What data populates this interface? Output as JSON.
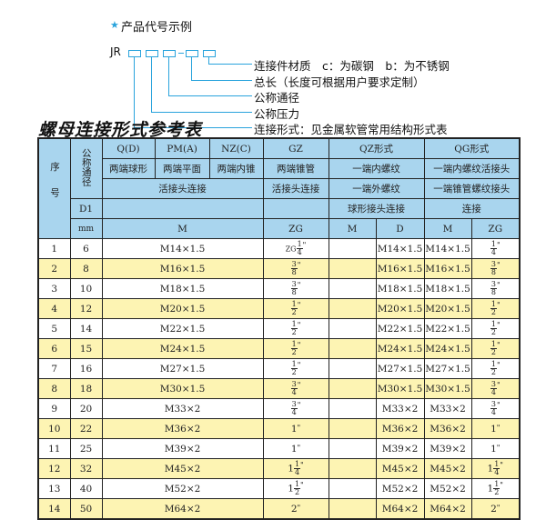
{
  "legend": {
    "title": "产品代号示例",
    "code_prefix": "JR",
    "items": [
      "连接件材质　c：为碳钢　b：为不锈钢",
      "总长（长度可根据用户要求定制）",
      "公称通径",
      "公称压力",
      "连接形式：见金属软管常用结构形式表"
    ],
    "accent": "#29a3dc"
  },
  "table_title": "螺母连接形式参考表",
  "header": {
    "seq": "序号",
    "nominal": "公称通径",
    "row1": [
      "Q(D)",
      "PM(A)",
      "NZ(C)",
      "GZ",
      "QZ形式",
      "QG形式"
    ],
    "row2": [
      "两端球形",
      "两端平面",
      "两端内锥",
      "两端锥管",
      "一端内螺纹",
      "一端内螺纹活接头"
    ],
    "row3": [
      "活接头连接",
      "活接头连接",
      "一端外螺纹",
      "一端锥管螺纹接头"
    ],
    "d1": "D1",
    "row4": [
      "球形接头连接",
      "连接"
    ],
    "mm": "mm",
    "row5": [
      "M",
      "ZG",
      "M",
      "D",
      "M",
      "ZG"
    ]
  },
  "colors": {
    "header_bg": "#a9d5ee",
    "alt_row_bg": "#fdf4b3"
  },
  "rows": [
    {
      "no": "1",
      "dn": "6",
      "m": "M14×1.5",
      "zg": {
        "pre": "ZG",
        "w": "",
        "n": "1",
        "d": "4"
      },
      "qz_m": "",
      "qz_d": "M14×1.5",
      "qg_m": "M14×1.5",
      "qg_zg": {
        "w": "",
        "n": "1",
        "d": "4"
      }
    },
    {
      "no": "2",
      "dn": "8",
      "m": "M16×1.5",
      "zg": {
        "w": "",
        "n": "3",
        "d": "8"
      },
      "qz_m": "",
      "qz_d": "M16×1.5",
      "qg_m": "M16×1.5",
      "qg_zg": {
        "w": "",
        "n": "3",
        "d": "8"
      }
    },
    {
      "no": "3",
      "dn": "10",
      "m": "M18×1.5",
      "zg": {
        "w": "",
        "n": "3",
        "d": "8"
      },
      "qz_m": "",
      "qz_d": "M18×1.5",
      "qg_m": "M18×1.5",
      "qg_zg": {
        "w": "",
        "n": "3",
        "d": "8"
      }
    },
    {
      "no": "4",
      "dn": "12",
      "m": "M20×1.5",
      "zg": {
        "w": "",
        "n": "1",
        "d": "2"
      },
      "qz_m": "",
      "qz_d": "M20×1.5",
      "qg_m": "M20×1.5",
      "qg_zg": {
        "w": "",
        "n": "1",
        "d": "2"
      }
    },
    {
      "no": "5",
      "dn": "14",
      "m": "M22×1.5",
      "zg": {
        "w": "",
        "n": "1",
        "d": "2"
      },
      "qz_m": "",
      "qz_d": "M22×1.5",
      "qg_m": "M22×1.5",
      "qg_zg": {
        "w": "",
        "n": "1",
        "d": "2"
      }
    },
    {
      "no": "6",
      "dn": "15",
      "m": "M24×1.5",
      "zg": {
        "w": "",
        "n": "1",
        "d": "2"
      },
      "qz_m": "",
      "qz_d": "M24×1.5",
      "qg_m": "M24×1.5",
      "qg_zg": {
        "w": "",
        "n": "1",
        "d": "2"
      }
    },
    {
      "no": "7",
      "dn": "16",
      "m": "M27×1.5",
      "zg": {
        "w": "",
        "n": "1",
        "d": "2"
      },
      "qz_m": "",
      "qz_d": "M27×1.5",
      "qg_m": "M27×1.5",
      "qg_zg": {
        "w": "",
        "n": "1",
        "d": "2"
      }
    },
    {
      "no": "8",
      "dn": "18",
      "m": "M30×1.5",
      "zg": {
        "w": "",
        "n": "3",
        "d": "4"
      },
      "qz_m": "",
      "qz_d": "M30×1.5",
      "qg_m": "M30×1.5",
      "qg_zg": {
        "w": "",
        "n": "3",
        "d": "4"
      }
    },
    {
      "no": "9",
      "dn": "20",
      "m": "M33×2",
      "zg": {
        "w": "",
        "n": "3",
        "d": "4"
      },
      "qz_m": "",
      "qz_d": "M33×2",
      "qg_m": "M33×2",
      "qg_zg": {
        "w": "",
        "n": "3",
        "d": "4"
      }
    },
    {
      "no": "10",
      "dn": "22",
      "m": "M36×2",
      "zg": {
        "w": "1"
      },
      "qz_m": "",
      "qz_d": "M36×2",
      "qg_m": "M36×2",
      "qg_zg": {
        "w": "1"
      }
    },
    {
      "no": "11",
      "dn": "25",
      "m": "M39×2",
      "zg": {
        "w": "1"
      },
      "qz_m": "",
      "qz_d": "M39×2",
      "qg_m": "M39×2",
      "qg_zg": {
        "w": "1"
      }
    },
    {
      "no": "12",
      "dn": "32",
      "m": "M45×2",
      "zg": {
        "w": "1",
        "n": "1",
        "d": "4"
      },
      "qz_m": "",
      "qz_d": "M45×2",
      "qg_m": "M45×2",
      "qg_zg": {
        "w": "1",
        "n": "1",
        "d": "4"
      }
    },
    {
      "no": "13",
      "dn": "40",
      "m": "M52×2",
      "zg": {
        "w": "1",
        "n": "1",
        "d": "2"
      },
      "qz_m": "",
      "qz_d": "M52×2",
      "qg_m": "M52×2",
      "qg_zg": {
        "w": "1",
        "n": "1",
        "d": "2"
      }
    },
    {
      "no": "14",
      "dn": "50",
      "m": "M64×2",
      "zg": {
        "w": "2"
      },
      "qz_m": "",
      "qz_d": "M64×2",
      "qg_m": "M64×2",
      "qg_zg": {
        "w": "2"
      }
    }
  ],
  "inch_mark": "\""
}
